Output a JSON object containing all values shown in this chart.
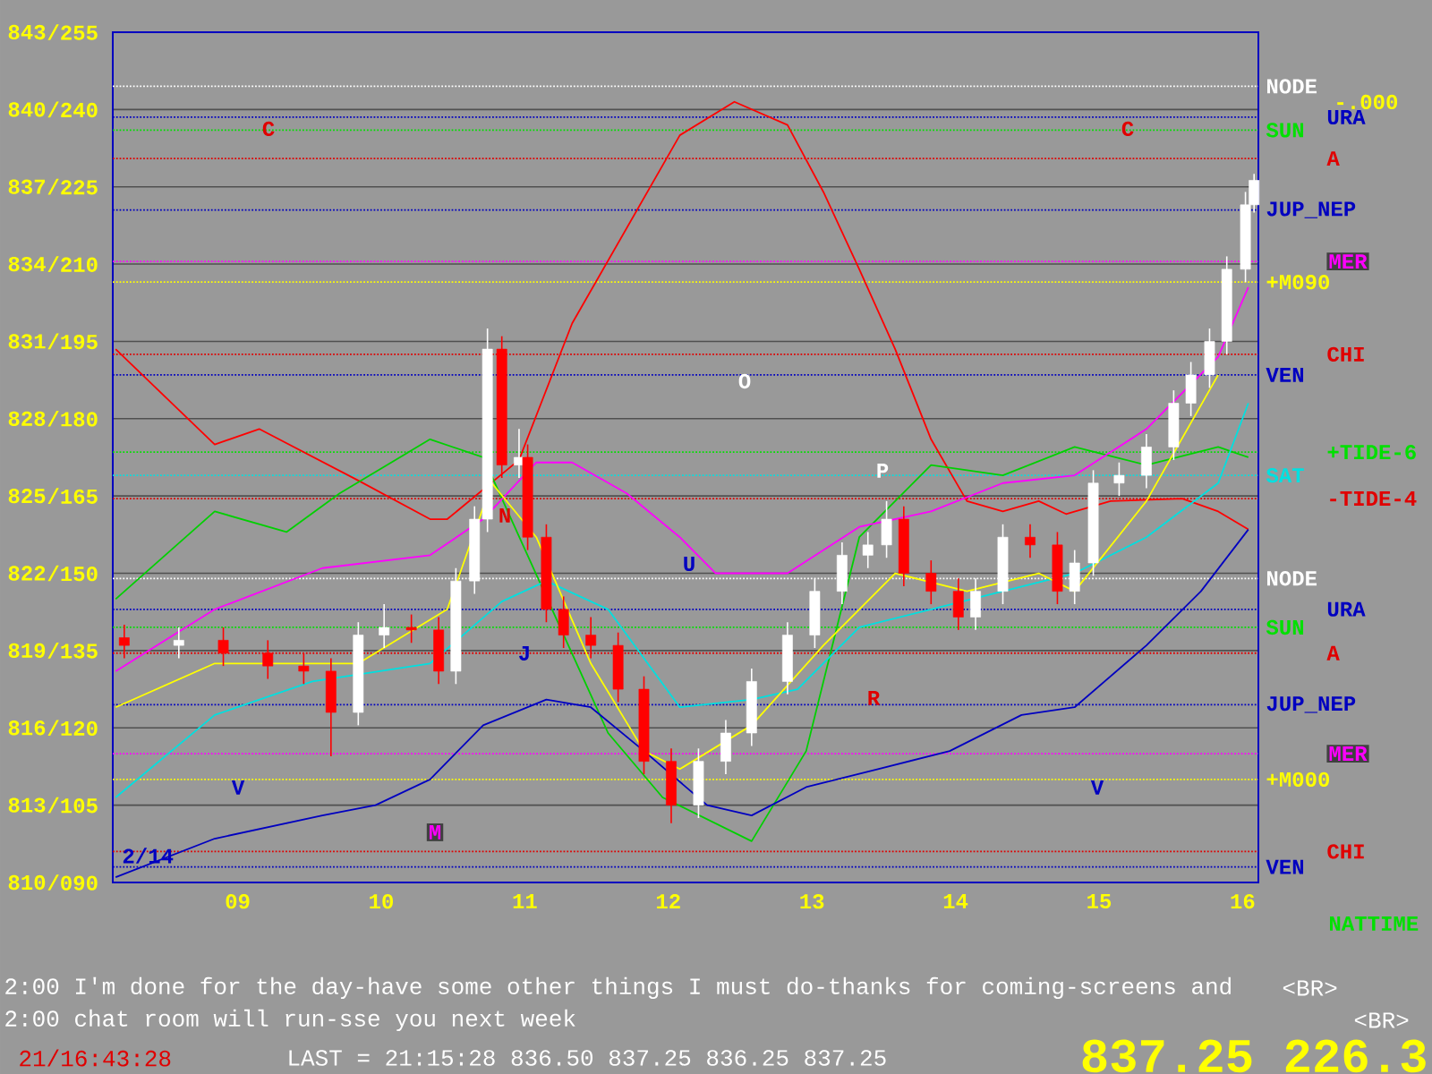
{
  "chart_data": {
    "type": "candlestick",
    "xlim": [
      8.13,
      16.11
    ],
    "ylim": [
      810,
      843
    ],
    "xticks": [
      {
        "value": 9,
        "label": "09"
      },
      {
        "value": 10,
        "label": "10"
      },
      {
        "value": 11,
        "label": "11"
      },
      {
        "value": 12,
        "label": "12"
      },
      {
        "value": 13,
        "label": "13"
      },
      {
        "value": 14,
        "label": "14"
      },
      {
        "value": 15,
        "label": "15"
      },
      {
        "value": 16,
        "label": "16"
      }
    ],
    "yticks": [
      810,
      813,
      816,
      819,
      822,
      825,
      828,
      831,
      834,
      837,
      840,
      843
    ],
    "y2lim": [
      90,
      255
    ],
    "y2ticks": [
      {
        "value": 90,
        "label": "/090"
      },
      {
        "value": 105,
        "label": "/105"
      },
      {
        "value": 120,
        "label": "/120"
      },
      {
        "value": 135,
        "label": "/135"
      },
      {
        "value": 150,
        "label": "/150"
      },
      {
        "value": 165,
        "label": "/165"
      },
      {
        "value": 180,
        "label": "/180"
      },
      {
        "value": 195,
        "label": "/195"
      },
      {
        "value": 210,
        "label": "/210"
      },
      {
        "value": 225,
        "label": "/225"
      },
      {
        "value": 240,
        "label": "/240"
      },
      {
        "value": 255,
        "label": "/255"
      }
    ],
    "grid": "y",
    "series": [
      {
        "type": "line",
        "color": "#ff0000",
        "x": [
          8.15,
          8.84,
          9.15,
          9.84,
          10.34,
          10.46,
          10.96,
          11.33,
          12.08,
          12.46,
          12.83,
          13.08,
          13.33,
          13.58,
          13.83,
          14.08,
          14.33,
          14.58,
          14.77,
          15.08,
          15.58,
          15.83,
          16.04
        ],
        "values": [
          830.7,
          827.0,
          827.6,
          825.6,
          824.1,
          824.1,
          826.4,
          831.7,
          839.0,
          840.3,
          839.4,
          836.8,
          833.8,
          830.7,
          827.2,
          824.8,
          824.4,
          824.8,
          824.3,
          824.8,
          824.9,
          824.4,
          823.7
        ]
      },
      {
        "type": "line",
        "color": "#00d000",
        "x": [
          8.15,
          8.84,
          9.34,
          9.71,
          10.34,
          10.71,
          11.58,
          11.96,
          12.58,
          12.96,
          13.33,
          13.83,
          14.33,
          14.83,
          15.33,
          15.83,
          16.04
        ],
        "values": [
          821.0,
          824.4,
          823.6,
          825.1,
          827.2,
          826.5,
          815.8,
          813.3,
          811.6,
          815.1,
          823.4,
          826.2,
          825.8,
          826.9,
          826.2,
          826.9,
          826.5
        ]
      },
      {
        "type": "line",
        "color": "#0000c0",
        "x": [
          8.15,
          8.84,
          9.59,
          9.96,
          10.34,
          10.71,
          11.15,
          11.46,
          11.83,
          12.27,
          12.58,
          12.96,
          13.46,
          13.96,
          14.46,
          14.83,
          15.33,
          15.71,
          16.04
        ],
        "values": [
          810.2,
          811.7,
          812.6,
          813.0,
          814.0,
          816.1,
          817.1,
          816.8,
          815.1,
          813.0,
          812.6,
          813.7,
          814.4,
          815.1,
          816.5,
          816.8,
          819.2,
          821.3,
          823.7
        ]
      },
      {
        "type": "line",
        "color": "#00e0e0",
        "x": [
          8.15,
          8.84,
          9.52,
          10.34,
          10.84,
          11.15,
          11.58,
          12.08,
          12.58,
          12.9,
          13.33,
          13.83,
          14.33,
          14.83,
          15.33,
          15.83,
          16.04
        ],
        "values": [
          813.3,
          816.5,
          817.8,
          818.5,
          820.9,
          821.7,
          820.6,
          816.8,
          817.1,
          817.5,
          819.9,
          820.6,
          821.3,
          822.0,
          823.4,
          825.5,
          828.6
        ]
      },
      {
        "type": "line",
        "color": "#ff00ff",
        "x": [
          8.15,
          8.84,
          9.59,
          10.34,
          10.71,
          11.08,
          11.33,
          11.71,
          12.08,
          12.33,
          12.83,
          13.33,
          13.83,
          14.33,
          14.83,
          15.33,
          15.83,
          16.04
        ],
        "values": [
          818.2,
          820.6,
          822.2,
          822.7,
          824.1,
          826.3,
          826.3,
          825.1,
          823.4,
          822.0,
          822.0,
          823.8,
          824.4,
          825.5,
          825.8,
          827.6,
          830.4,
          833.1
        ]
      },
      {
        "type": "line",
        "color": "#ffff00",
        "x": [
          8.15,
          8.84,
          9.84,
          10.46,
          10.77,
          11.08,
          11.46,
          11.83,
          12.08,
          12.58,
          13.08,
          13.58,
          14.08,
          14.58,
          14.83,
          15.33,
          15.83
        ],
        "values": [
          816.8,
          818.5,
          818.5,
          820.6,
          825.5,
          823.4,
          818.5,
          815.1,
          814.4,
          816.1,
          819.2,
          822.0,
          821.3,
          822.0,
          821.3,
          824.8,
          829.7
        ]
      },
      {
        "x": [
          8.21,
          8.59,
          8.9,
          9.21,
          9.46,
          9.65,
          9.84,
          10.02,
          10.21,
          10.4,
          10.52,
          10.65,
          10.74,
          10.84,
          10.96,
          11.02,
          11.15,
          11.27,
          11.46,
          11.65,
          11.83,
          12.02,
          12.21,
          12.4,
          12.58,
          12.83,
          13.02,
          13.21,
          13.39,
          13.52,
          13.64,
          13.83,
          14.02,
          14.14,
          14.33,
          14.52,
          14.71,
          14.83,
          14.96,
          15.14,
          15.33,
          15.52,
          15.64,
          15.77,
          15.89,
          16.02,
          16.08
        ],
        "ohlc": [
          [
            819.5,
            820.0,
            818.7,
            819.2
          ],
          [
            819.2,
            819.9,
            818.7,
            819.4
          ],
          [
            819.4,
            819.9,
            818.4,
            818.9
          ],
          [
            818.9,
            819.4,
            817.9,
            818.4
          ],
          [
            818.4,
            818.9,
            817.7,
            818.2
          ],
          [
            818.2,
            818.7,
            814.9,
            816.6
          ],
          [
            816.6,
            820.1,
            816.1,
            819.6
          ],
          [
            819.6,
            820.8,
            819.1,
            819.9
          ],
          [
            819.9,
            820.4,
            819.3,
            819.8
          ],
          [
            819.8,
            820.3,
            817.7,
            818.2
          ],
          [
            818.2,
            822.2,
            817.7,
            821.7
          ],
          [
            821.7,
            824.6,
            821.2,
            824.1
          ],
          [
            824.1,
            831.5,
            823.6,
            830.7
          ],
          [
            830.7,
            831.2,
            825.7,
            826.2
          ],
          [
            826.2,
            827.6,
            825.7,
            826.5
          ],
          [
            826.5,
            827.0,
            822.9,
            823.4
          ],
          [
            823.4,
            823.9,
            820.1,
            820.6
          ],
          [
            820.6,
            821.1,
            819.1,
            819.6
          ],
          [
            819.6,
            820.3,
            818.7,
            819.2
          ],
          [
            819.2,
            819.7,
            817.0,
            817.5
          ],
          [
            817.5,
            818.0,
            814.2,
            814.7
          ],
          [
            814.7,
            815.2,
            812.3,
            813.0
          ],
          [
            813.0,
            815.2,
            812.5,
            814.7
          ],
          [
            814.7,
            816.3,
            814.2,
            815.8
          ],
          [
            815.8,
            818.3,
            815.3,
            817.8
          ],
          [
            817.8,
            820.1,
            817.3,
            819.6
          ],
          [
            819.6,
            821.8,
            819.1,
            821.3
          ],
          [
            821.3,
            823.2,
            820.8,
            822.7
          ],
          [
            822.7,
            823.6,
            822.2,
            823.1
          ],
          [
            823.1,
            824.8,
            822.6,
            824.1
          ],
          [
            824.1,
            824.6,
            821.5,
            822.0
          ],
          [
            822.0,
            822.5,
            820.8,
            821.3
          ],
          [
            821.3,
            821.8,
            819.8,
            820.3
          ],
          [
            820.3,
            821.8,
            819.8,
            821.3
          ],
          [
            821.3,
            823.9,
            820.8,
            823.4
          ],
          [
            823.4,
            823.9,
            822.6,
            823.1
          ],
          [
            823.1,
            823.6,
            820.8,
            821.3
          ],
          [
            821.3,
            822.9,
            820.8,
            822.4
          ],
          [
            822.4,
            826.0,
            821.9,
            825.5
          ],
          [
            825.5,
            826.3,
            825.0,
            825.8
          ],
          [
            825.8,
            827.4,
            825.3,
            826.9
          ],
          [
            826.9,
            829.1,
            826.4,
            828.6
          ],
          [
            828.6,
            830.2,
            828.1,
            829.7
          ],
          [
            829.7,
            831.5,
            829.2,
            831.0
          ],
          [
            831.0,
            834.3,
            830.5,
            833.8
          ],
          [
            833.8,
            836.8,
            833.3,
            836.3
          ],
          [
            836.3,
            837.5,
            836.0,
            837.25
          ]
        ],
        "colors": [
          "#ff0000",
          "#ffffff",
          "#ff0000",
          "#ff0000",
          "#ff0000",
          "#ff0000",
          "#ffffff",
          "#ffffff",
          "#ff0000",
          "#ff0000",
          "#ffffff",
          "#ffffff",
          "#ffffff",
          "#ff0000",
          "#ffffff",
          "#ff0000",
          "#ff0000",
          "#ff0000",
          "#ff0000",
          "#ff0000",
          "#ff0000",
          "#ff0000",
          "#ffffff",
          "#ffffff",
          "#ffffff",
          "#ffffff",
          "#ffffff",
          "#ffffff",
          "#ffffff",
          "#ffffff",
          "#ff0000",
          "#ff0000",
          "#ff0000",
          "#ffffff",
          "#ffffff",
          "#ff0000",
          "#ff0000",
          "#ffffff",
          "#ffffff",
          "#ffffff",
          "#ffffff",
          "#ffffff",
          "#ffffff",
          "#ffffff",
          "#ffffff",
          "#ffffff",
          "#ffffff"
        ]
      }
    ],
    "ref_lines": [
      {
        "axis": "y",
        "value": 840.9,
        "label": "NODE",
        "color": "#ffffff"
      },
      {
        "axis": "y",
        "value": 839.7,
        "label": "URA",
        "color": "#0000c0"
      },
      {
        "axis": "y",
        "value": 839.2,
        "label": "SUN",
        "color": "#00e000"
      },
      {
        "axis": "y",
        "value": 838.1,
        "label": "A",
        "color": "#e00000"
      },
      {
        "axis": "y",
        "value": 836.1,
        "label": "JUP_NEP",
        "color": "#0000c0"
      },
      {
        "axis": "y",
        "value": 834.1,
        "label": "MER",
        "color": "#ff00ff"
      },
      {
        "axis": "y",
        "value": 833.3,
        "label": "+M090",
        "color": "#ffff00"
      },
      {
        "axis": "y",
        "value": 830.5,
        "label": "CHI",
        "color": "#e00000"
      },
      {
        "axis": "y",
        "value": 829.7,
        "label": "VEN",
        "color": "#0000c0"
      },
      {
        "axis": "y",
        "value": 826.7,
        "label": "+TIDE-6",
        "color": "#00e000"
      },
      {
        "axis": "y",
        "value": 825.8,
        "label": "SAT",
        "color": "#00e0e0"
      },
      {
        "axis": "y",
        "value": 824.9,
        "label": "-TIDE-4",
        "color": "#e00000"
      },
      {
        "axis": "y",
        "value": 821.8,
        "label": "NODE",
        "color": "#ffffff"
      },
      {
        "axis": "y",
        "value": 820.6,
        "label": "URA",
        "color": "#0000c0"
      },
      {
        "axis": "y",
        "value": 819.9,
        "label": "SUN",
        "color": "#00e000"
      },
      {
        "axis": "y",
        "value": 818.9,
        "label": "A",
        "color": "#e00000"
      },
      {
        "axis": "y",
        "value": 816.9,
        "label": "JUP_NEP",
        "color": "#0000c0"
      },
      {
        "axis": "y",
        "value": 815.0,
        "label": "MER",
        "color": "#ff00ff"
      },
      {
        "axis": "y",
        "value": 814.0,
        "label": "+M000",
        "color": "#ffff00"
      },
      {
        "axis": "y",
        "value": 811.2,
        "label": "CHI",
        "color": "#e00000"
      },
      {
        "axis": "y",
        "value": 810.6,
        "label": "VEN",
        "color": "#0000c0"
      }
    ],
    "annotations": [
      "C",
      "C",
      "V",
      "V",
      "M",
      "J",
      "N",
      "U",
      "O",
      "P",
      "R",
      "2/14",
      "-.000",
      "2:00 I'm done for the day-have some other things I must do-thanks for coming-screens and",
      "2:00 chat room will run-sse you next week",
      "<BR>",
      "<BR>",
      "21/16:43:28",
      "LAST = 21:15:28 836.50 837.25 836.25 837.25",
      "837.25 226.3",
      "NATTIME"
    ]
  }
}
